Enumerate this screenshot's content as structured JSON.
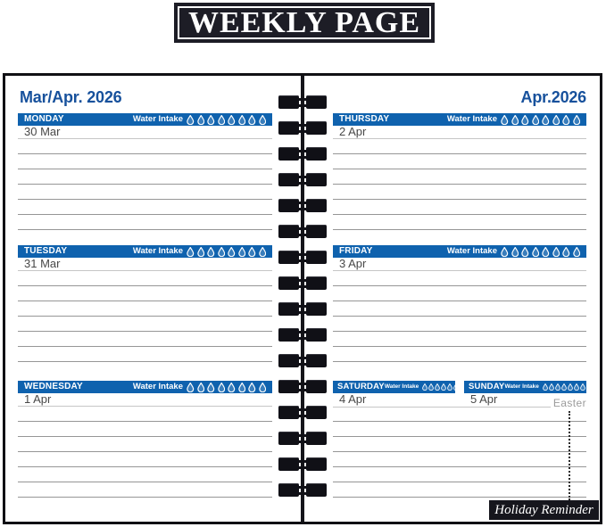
{
  "banner": {
    "title": "WEEKLY PAGE"
  },
  "planner": {
    "water_label": "Water Intake",
    "droplet_count": 8,
    "colors": {
      "bar_blue": "#0f62ae",
      "header_blue": "#17519c",
      "banner_bg": "#1d1d26"
    },
    "left_page": {
      "header": "Mar/Apr. 2026",
      "days": [
        {
          "name": "MONDAY",
          "date": "30 Mar"
        },
        {
          "name": "TUESDAY",
          "date": "31 Mar"
        },
        {
          "name": "WEDNESDAY",
          "date": "1 Apr"
        }
      ]
    },
    "right_page": {
      "header": "Apr.2026",
      "days": [
        {
          "name": "THURSDAY",
          "date": "2 Apr"
        },
        {
          "name": "FRIDAY",
          "date": "3 Apr"
        }
      ],
      "weekend_days": [
        {
          "name": "SATURDAY",
          "date": "4 Apr"
        },
        {
          "name": "SUNDAY",
          "date": "5 Apr"
        }
      ],
      "holiday_note": "Easter",
      "holiday_reminder_label": "Holiday Reminder"
    }
  }
}
